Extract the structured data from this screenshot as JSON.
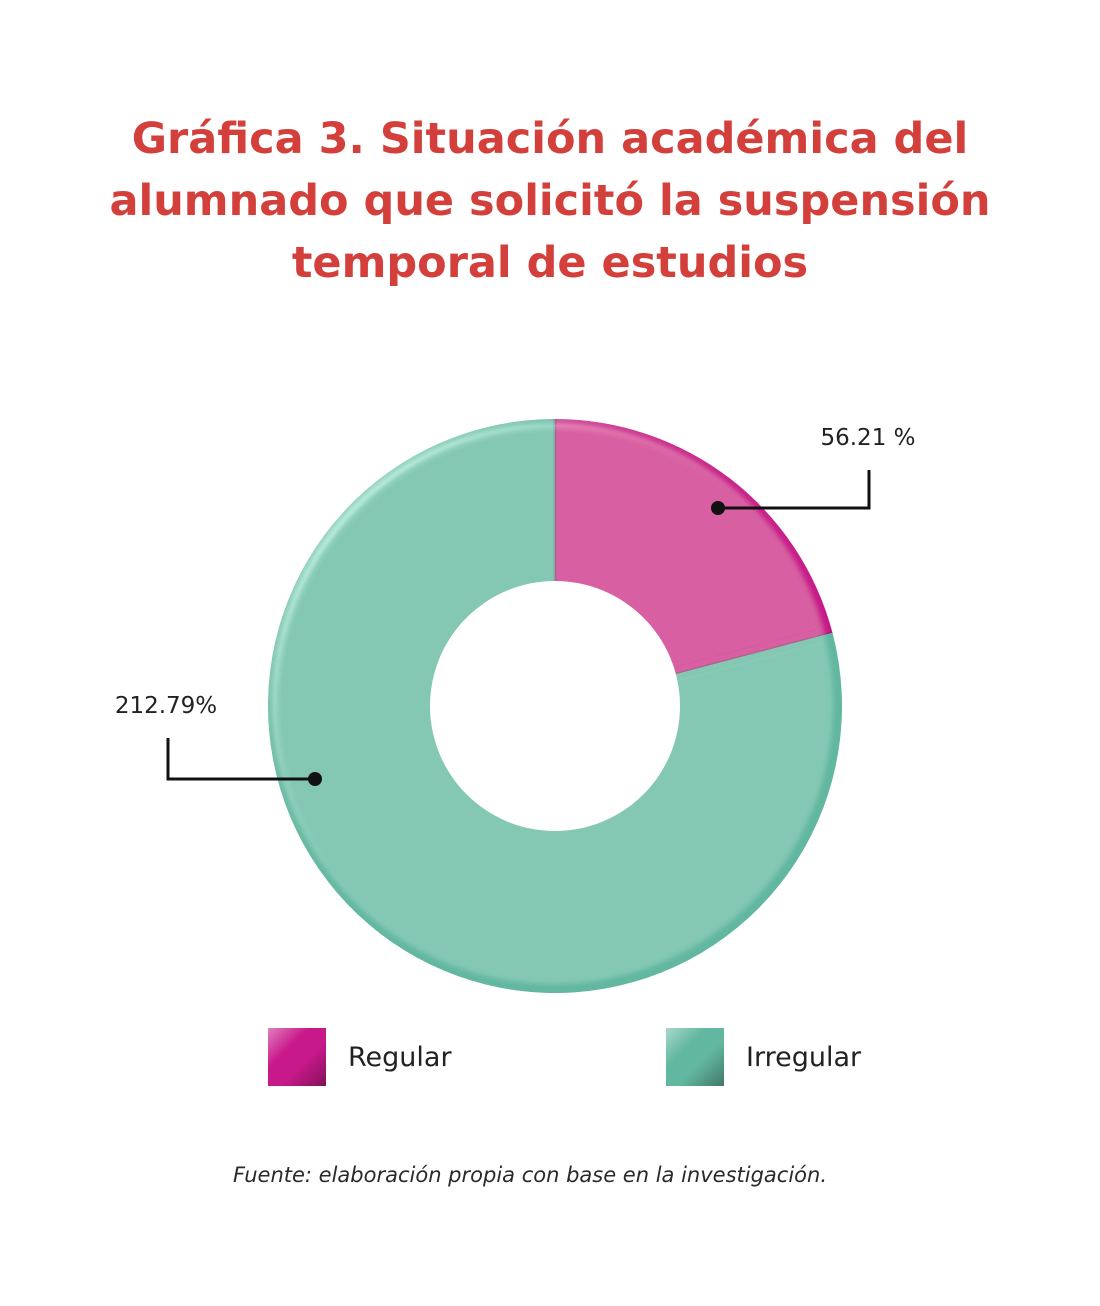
{
  "chart_data": {
    "type": "pie",
    "variant": "donut",
    "title_lines": [
      "Gráfica 3. Situación académica del",
      "alumnado que solicitó la suspensión",
      "temporal de estudios"
    ],
    "series": [
      {
        "name": "Regular",
        "value": 56.21,
        "label": "56.21 %",
        "color": "#c8198a"
      },
      {
        "name": "Irregular",
        "value": 212.79,
        "label": "212.79%",
        "color": "#62b7a0"
      }
    ],
    "legend_position": "bottom",
    "colors": {
      "title": "#d33f3a",
      "regular": "#c8198a",
      "irregular": "#62b7a0"
    }
  },
  "source_note": "Fuente: elaboración propia con base en la investigación."
}
